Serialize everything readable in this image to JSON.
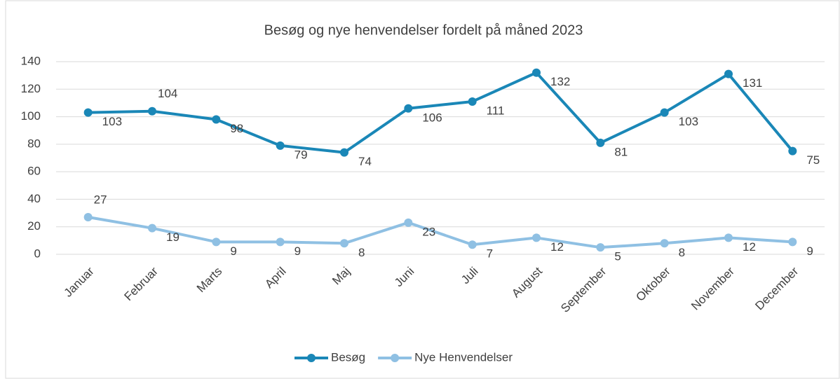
{
  "chart_data": {
    "type": "line",
    "title": "Besøg og nye henvendelser fordelt på måned 2023",
    "categories": [
      "Januar",
      "Februar",
      "Marts",
      "April",
      "Maj",
      "Juni",
      "Juli",
      "August",
      "September",
      "Oktober",
      "November",
      "December"
    ],
    "series": [
      {
        "name": "Besøg",
        "color": "#1a87b7",
        "values": [
          103,
          104,
          98,
          79,
          74,
          106,
          111,
          132,
          81,
          103,
          131,
          75
        ]
      },
      {
        "name": "Nye Henvendelser",
        "color": "#8fc0e3",
        "values": [
          27,
          19,
          9,
          9,
          8,
          23,
          7,
          12,
          5,
          8,
          12,
          9
        ]
      }
    ],
    "ylim": [
      0,
      140
    ],
    "yticks": [
      0,
      20,
      40,
      60,
      80,
      100,
      120,
      140
    ],
    "grid": true,
    "legend": "bottom"
  }
}
